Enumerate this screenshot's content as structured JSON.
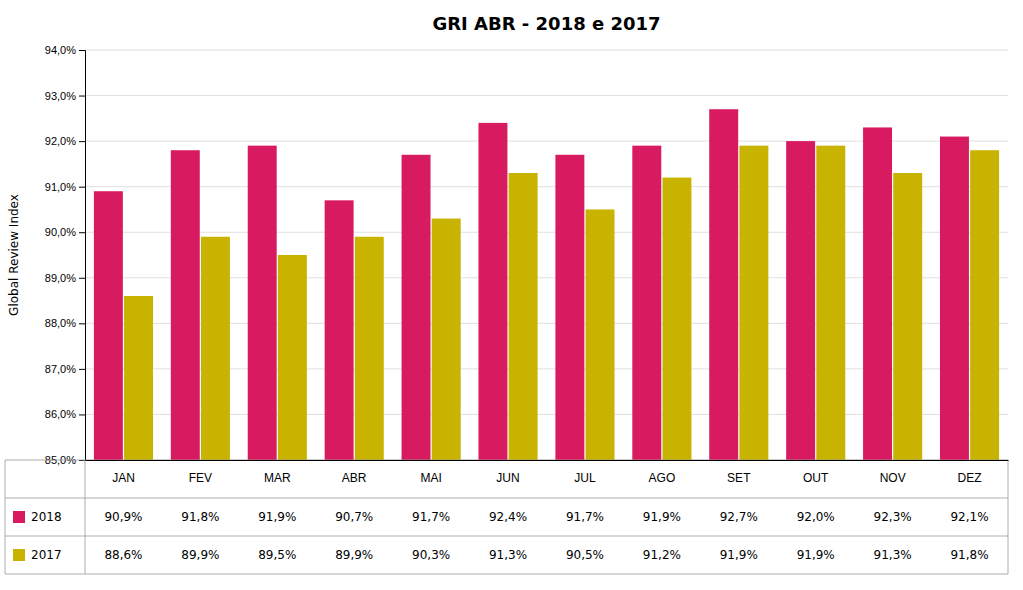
{
  "chart_data": {
    "type": "bar",
    "title": "GRI ABR - 2018 e 2017",
    "y_label": "Global Review Index",
    "categories": [
      "JAN",
      "FEV",
      "MAR",
      "ABR",
      "MAI",
      "JUN",
      "JUL",
      "AGO",
      "SET",
      "OUT",
      "NOV",
      "DEZ"
    ],
    "series": [
      {
        "name": "2018",
        "color": "#D81B60",
        "values": [
          90.9,
          91.8,
          91.9,
          90.7,
          91.7,
          92.4,
          91.7,
          91.9,
          92.7,
          92.0,
          92.3,
          92.1
        ],
        "value_labels": [
          "90,9%",
          "91,8%",
          "91,9%",
          "90,7%",
          "91,7%",
          "92,4%",
          "91,7%",
          "91,9%",
          "92,7%",
          "92,0%",
          "92,3%",
          "92,1%"
        ]
      },
      {
        "name": "2017",
        "color": "#C8B400",
        "values": [
          88.6,
          89.9,
          89.5,
          89.9,
          90.3,
          91.3,
          90.5,
          91.2,
          91.9,
          91.9,
          91.3,
          91.8
        ],
        "value_labels": [
          "88,6%",
          "89,9%",
          "89,5%",
          "89,9%",
          "90,3%",
          "91,3%",
          "90,5%",
          "91,2%",
          "91,9%",
          "91,9%",
          "91,3%",
          "91,8%"
        ]
      }
    ],
    "ylim": [
      85.0,
      94.0
    ],
    "yticks": [
      {
        "value": 85,
        "label": "85,0%"
      },
      {
        "value": 86,
        "label": "86,0%"
      },
      {
        "value": 87,
        "label": "87,0%"
      },
      {
        "value": 88,
        "label": "88,0%"
      },
      {
        "value": 89,
        "label": "89,0%"
      },
      {
        "value": 90,
        "label": "90,0%"
      },
      {
        "value": 91,
        "label": "91,0%"
      },
      {
        "value": 92,
        "label": "92,0%"
      },
      {
        "value": 93,
        "label": "93,0%"
      },
      {
        "value": 94,
        "label": "94,0%"
      }
    ],
    "grid": true,
    "data_labels": true
  }
}
